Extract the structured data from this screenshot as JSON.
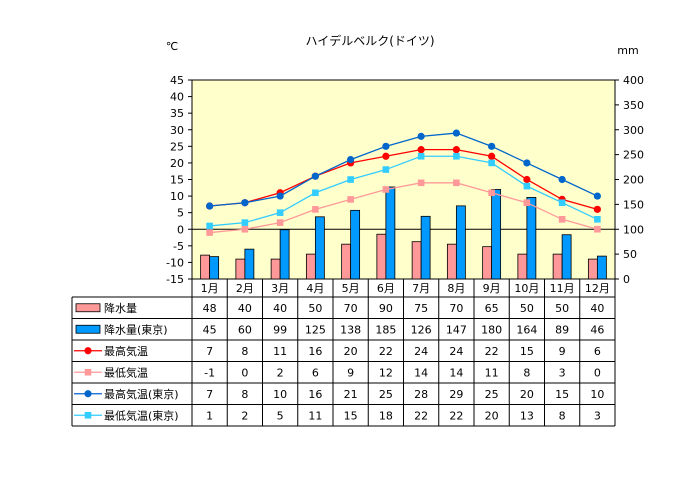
{
  "chart_data": {
    "type": "combo",
    "title": "ハイデルベルク(ドイツ)",
    "left_unit": "℃",
    "right_unit": "mm",
    "left_axis": {
      "min": -15,
      "max": 45,
      "step": 5
    },
    "right_axis": {
      "min": 0,
      "max": 400,
      "step": 50
    },
    "categories": [
      "1月",
      "2月",
      "3月",
      "4月",
      "5月",
      "6月",
      "7月",
      "8月",
      "9月",
      "10月",
      "11月",
      "12月"
    ],
    "legend_placement": "data-table-left",
    "plot_background": "#ffffcc",
    "series": [
      {
        "name": "降水量",
        "kind": "bar",
        "axis": "right",
        "color": "#ff9999",
        "values": [
          48,
          40,
          40,
          50,
          70,
          90,
          75,
          70,
          65,
          50,
          50,
          40
        ]
      },
      {
        "name": "降水量(東京)",
        "kind": "bar",
        "axis": "right",
        "color": "#0099ff",
        "values": [
          45,
          60,
          99,
          125,
          138,
          185,
          126,
          147,
          180,
          164,
          89,
          46
        ]
      },
      {
        "name": "最高気温",
        "kind": "line",
        "axis": "left",
        "color": "#ff0000",
        "marker": "circle",
        "values": [
          7,
          8,
          11,
          16,
          20,
          22,
          24,
          24,
          22,
          15,
          9,
          6
        ]
      },
      {
        "name": "最低気温",
        "kind": "line",
        "axis": "left",
        "color": "#ff9999",
        "marker": "square",
        "values": [
          -1,
          0,
          2,
          6,
          9,
          12,
          14,
          14,
          11,
          8,
          3,
          0
        ]
      },
      {
        "name": "最高気温(東京)",
        "kind": "line",
        "axis": "left",
        "color": "#0066cc",
        "marker": "circle",
        "values": [
          7,
          8,
          10,
          16,
          21,
          25,
          28,
          29,
          25,
          20,
          15,
          10
        ]
      },
      {
        "name": "最低気温(東京)",
        "kind": "line",
        "axis": "left",
        "color": "#33ccff",
        "marker": "square",
        "values": [
          1,
          2,
          5,
          11,
          15,
          18,
          22,
          22,
          20,
          13,
          8,
          3
        ]
      }
    ]
  }
}
